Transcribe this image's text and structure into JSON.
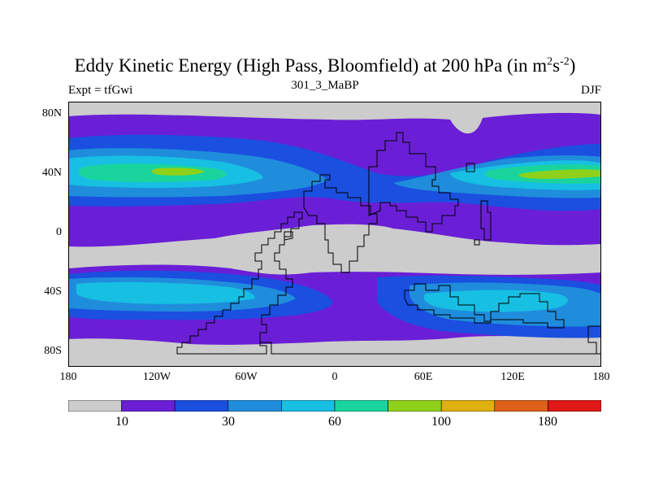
{
  "title": {
    "main": "Eddy Kinetic Energy (High Pass, Bloomfield) at 200 hPa (in m",
    "sup1": "2",
    "mid": "s",
    "sup2": "-2",
    "end": ")"
  },
  "subtitle": "301_3_MaBP",
  "expt_label": "Expt = tfGwi",
  "season": "DJF",
  "axes": {
    "y_ticks": [
      "80N",
      "40N",
      "0",
      "40S",
      "80S"
    ],
    "x_ticks": [
      "180",
      "120W",
      "60W",
      "0",
      "60E",
      "120E",
      "180"
    ]
  },
  "colorbar": {
    "colors": [
      "#cccccc",
      "#6a1fd6",
      "#1a4fe0",
      "#1f8ddc",
      "#17bfe3",
      "#19d59d",
      "#8fd11a",
      "#e0b010",
      "#e0601a",
      "#e01818"
    ],
    "labels": [
      "10",
      "30",
      "60",
      "100",
      "180"
    ]
  },
  "palette": {
    "gray": "#cccccc",
    "purple": "#6a1fd6",
    "blue": "#1a4fe0",
    "midblue": "#1f8ddc",
    "cyan": "#17bfe3",
    "green": "#19d59d",
    "lime": "#8fd11a"
  }
}
